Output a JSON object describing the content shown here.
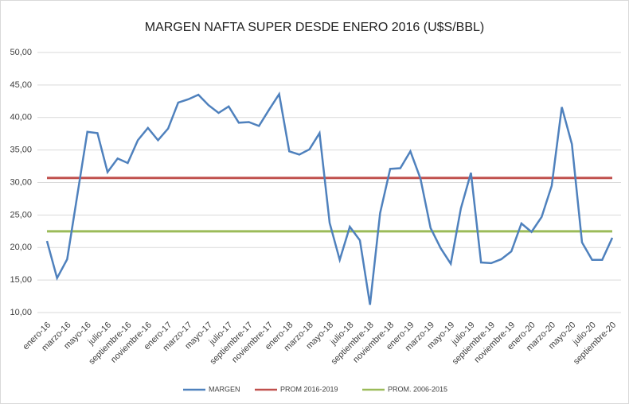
{
  "chart_data": {
    "type": "line",
    "title": "MARGEN NAFTA SUPER DESDE ENERO 2016 (U$S/BBL)",
    "categories": [
      "enero-16",
      null,
      "marzo-16",
      null,
      "mayo-16",
      null,
      "julio-16",
      null,
      "septiembre-16",
      null,
      "noviembre-16",
      null,
      "enero-17",
      null,
      "marzo-17",
      null,
      "mayo-17",
      null,
      "julio-17",
      null,
      "septiembre-17",
      null,
      "noviembre-17",
      null,
      "enero-18",
      null,
      "marzo-18",
      null,
      "mayo-18",
      null,
      "julio-18",
      null,
      "septiembre-18",
      null,
      "noviembre-18",
      null,
      "enero-19",
      null,
      "marzo-19",
      null,
      "mayo-19",
      null,
      "julio-19",
      null,
      "septiembre-19",
      null,
      "noviembre-19",
      null,
      "enero-20",
      null,
      "marzo-20",
      null,
      "mayo-20",
      null,
      "julio-20",
      null,
      "septiembre-20"
    ],
    "series": [
      {
        "name": "MARGEN",
        "color": "#4f81bd",
        "values": [
          21.0,
          15.3,
          18.2,
          28.0,
          37.8,
          37.6,
          31.6,
          33.7,
          33.0,
          36.5,
          38.4,
          36.5,
          38.3,
          42.3,
          42.8,
          43.5,
          41.9,
          40.7,
          41.7,
          39.2,
          39.3,
          38.7,
          41.2,
          43.6,
          34.8,
          34.3,
          35.1,
          37.6,
          23.8,
          18.1,
          23.2,
          21.1,
          11.2,
          25.3,
          32.1,
          32.2,
          34.8,
          30.6,
          23.0,
          19.9,
          17.5,
          26.0,
          31.5,
          17.7,
          17.6,
          18.2,
          19.4,
          23.7,
          22.4,
          24.7,
          29.5,
          41.6,
          35.9,
          20.8,
          18.1,
          18.1,
          21.5
        ]
      },
      {
        "name": "PROM 2016-2019",
        "color": "#c0504d",
        "values": [
          30.7,
          30.7,
          30.7,
          30.7,
          30.7,
          30.7,
          30.7,
          30.7,
          30.7,
          30.7,
          30.7,
          30.7,
          30.7,
          30.7,
          30.7,
          30.7,
          30.7,
          30.7,
          30.7,
          30.7,
          30.7,
          30.7,
          30.7,
          30.7,
          30.7,
          30.7,
          30.7,
          30.7,
          30.7,
          30.7,
          30.7,
          30.7,
          30.7,
          30.7,
          30.7,
          30.7,
          30.7,
          30.7,
          30.7,
          30.7,
          30.7,
          30.7,
          30.7,
          30.7,
          30.7,
          30.7,
          30.7,
          30.7,
          30.7,
          30.7,
          30.7,
          30.7,
          30.7,
          30.7,
          30.7,
          30.7,
          30.7
        ]
      },
      {
        "name": "PROM. 2006-2015",
        "color": "#9bbb59",
        "values": [
          22.5,
          22.5,
          22.5,
          22.5,
          22.5,
          22.5,
          22.5,
          22.5,
          22.5,
          22.5,
          22.5,
          22.5,
          22.5,
          22.5,
          22.5,
          22.5,
          22.5,
          22.5,
          22.5,
          22.5,
          22.5,
          22.5,
          22.5,
          22.5,
          22.5,
          22.5,
          22.5,
          22.5,
          22.5,
          22.5,
          22.5,
          22.5,
          22.5,
          22.5,
          22.5,
          22.5,
          22.5,
          22.5,
          22.5,
          22.5,
          22.5,
          22.5,
          22.5,
          22.5,
          22.5,
          22.5,
          22.5,
          22.5,
          22.5,
          22.5,
          22.5,
          22.5,
          22.5,
          22.5,
          22.5,
          22.5,
          22.5
        ]
      }
    ],
    "ylim": [
      10,
      50
    ],
    "yticks": [
      {
        "value": 10,
        "label": "10,00"
      },
      {
        "value": 15,
        "label": "15,00"
      },
      {
        "value": 20,
        "label": "20,00"
      },
      {
        "value": 25,
        "label": "25,00"
      },
      {
        "value": 30,
        "label": "30,00"
      },
      {
        "value": 35,
        "label": "35,00"
      },
      {
        "value": 40,
        "label": "40,00"
      },
      {
        "value": 45,
        "label": "45,00"
      },
      {
        "value": 50,
        "label": "50,00"
      }
    ],
    "grid": true,
    "legend": "bottom"
  }
}
